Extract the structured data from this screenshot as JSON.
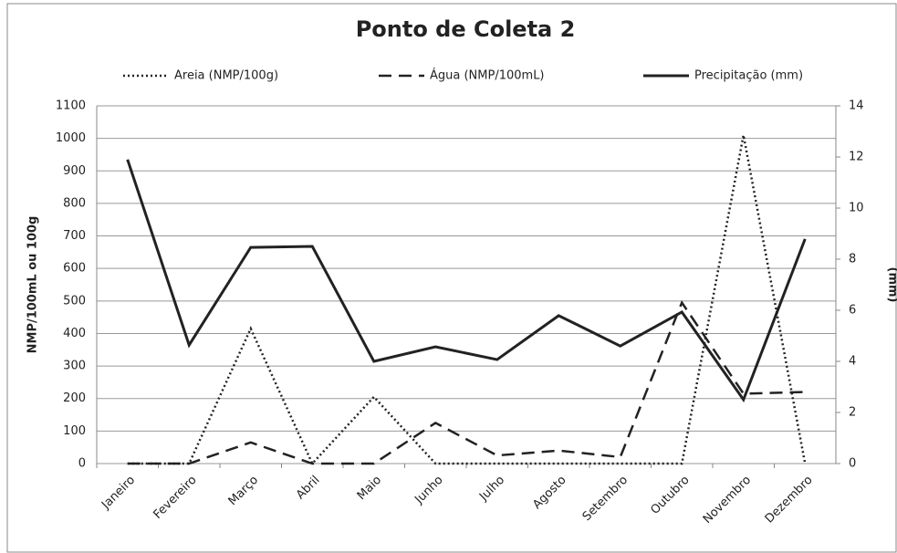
{
  "chart_data": {
    "type": "line",
    "title": "Ponto de Coleta 2",
    "ylabel": "NMP/100mL ou 100g",
    "y2label": "(mm)",
    "categories": [
      "Janeiro",
      "Fevereiro",
      "Março",
      "Abril",
      "Maio",
      "Junho",
      "Julho",
      "Agosto",
      "Setembro",
      "Outubro",
      "Novembro",
      "Dezembro"
    ],
    "series": [
      {
        "name": "Areia (NMP/100g)",
        "color": "#222222",
        "dash": "dotted",
        "values": [
          0,
          0,
          415,
          0,
          205,
          0,
          0,
          0,
          0,
          0,
          1010,
          0
        ]
      },
      {
        "name": "Água (NMP/100mL)",
        "color": "#222222",
        "dash": "dashed",
        "values": [
          0,
          0,
          65,
          0,
          0,
          125,
          25,
          40,
          20,
          495,
          215,
          220
        ]
      },
      {
        "name": "Precipitação (mm)",
        "color": "#222222",
        "dash": "solid",
        "axis": "y2",
        "values": [
          11.9,
          4.64,
          8.46,
          8.5,
          4.0,
          4.57,
          4.07,
          5.79,
          4.6,
          5.93,
          2.5,
          8.79
        ]
      }
    ],
    "ylim": [
      0,
      1100
    ],
    "yticks": [
      0,
      100,
      200,
      300,
      400,
      500,
      600,
      700,
      800,
      900,
      1000,
      1100
    ],
    "y2lim": [
      0,
      14
    ],
    "y2ticks": [
      0,
      2,
      4,
      6,
      8,
      10,
      12,
      14
    ],
    "grid": true,
    "legend": "top"
  }
}
